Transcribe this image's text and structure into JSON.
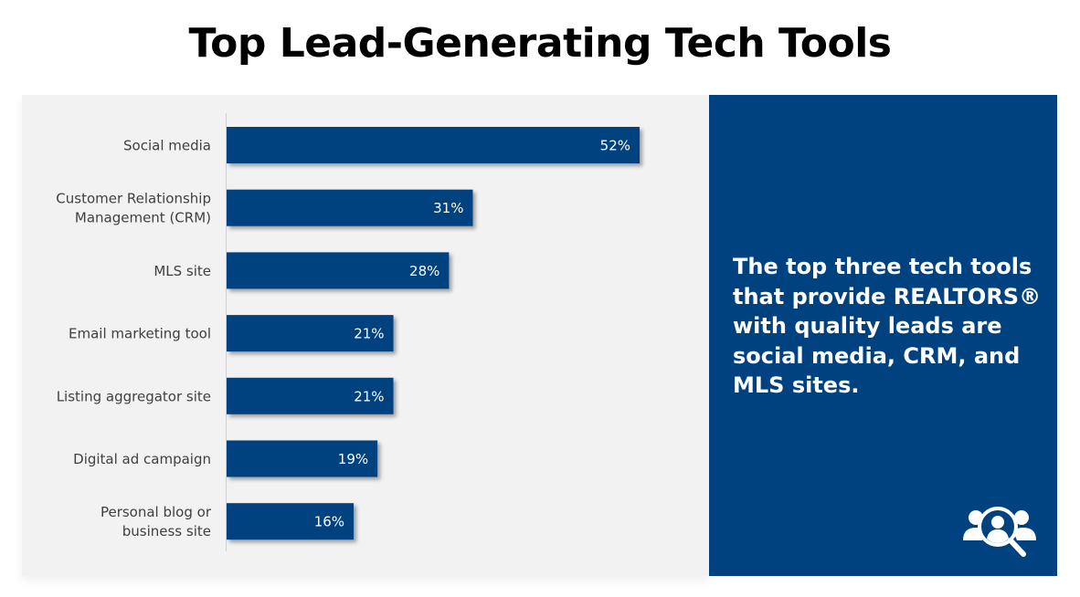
{
  "title": "Top Lead-Generating Tech Tools",
  "callout": "The top three tech tools that provide REALTORS® with quality leads are social media, CRM, and MLS sites.",
  "icon": "people-search-icon",
  "colors": {
    "bar": "#00427f",
    "panel": "#f2f2f2",
    "side_panel": "#00427f"
  },
  "chart_data": {
    "type": "bar",
    "orientation": "horizontal",
    "categories": [
      [
        "Social media"
      ],
      [
        "Customer Relationship",
        "Management (CRM)"
      ],
      [
        "MLS site"
      ],
      [
        "Email marketing tool"
      ],
      [
        "Listing aggregator site"
      ],
      [
        "Digital ad campaign"
      ],
      [
        "Personal blog or",
        "business site"
      ]
    ],
    "values": [
      52,
      31,
      28,
      21,
      21,
      19,
      16
    ],
    "data_labels": [
      "52%",
      "31%",
      "28%",
      "21%",
      "21%",
      "19%",
      "16%"
    ],
    "title": "",
    "xlabel": "",
    "ylabel": "",
    "unit": "%",
    "grid": false,
    "legend": "none"
  }
}
